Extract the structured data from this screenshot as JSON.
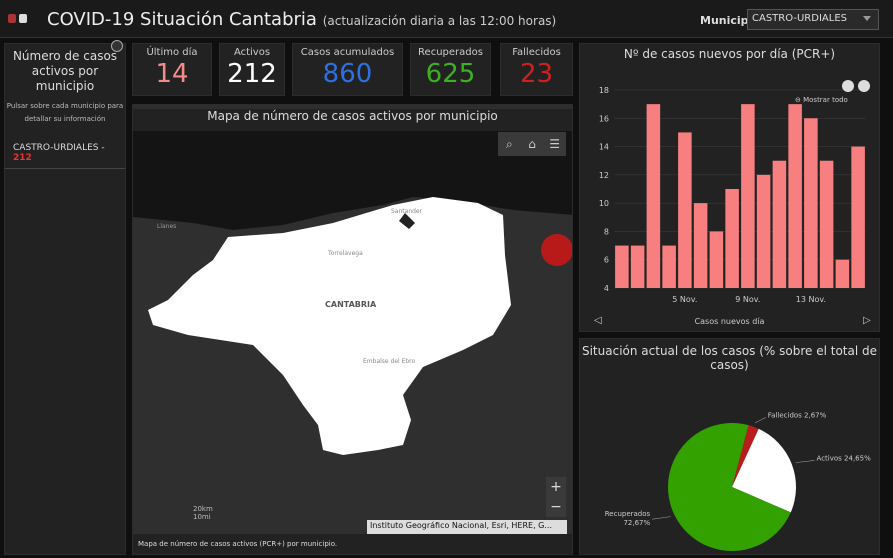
{
  "header": {
    "title": "COVID-19 Situación Cantabria",
    "subtitle": "(actualización diaria a las 12:00 horas)",
    "municipio_label": "Municipio",
    "municipio_value": "CASTRO-URDIALES"
  },
  "sidebar": {
    "heading": "Número de casos activos por municipio",
    "hint": "Pulsar sobre cada municipio para detallar su información",
    "item_name": "CASTRO-URDIALES -",
    "item_value": "212"
  },
  "kpis": [
    {
      "label": "Último día",
      "value": "14",
      "color": "#f48b8b"
    },
    {
      "label": "Activos",
      "value": "212",
      "color": "#ffffff"
    },
    {
      "label": "Casos acumulados",
      "value": "860",
      "color": "#2f6fe0"
    },
    {
      "label": "Recuperados",
      "value": "625",
      "color": "#3cb021"
    },
    {
      "label": "Fallecidos",
      "value": "23",
      "color": "#d01f1f"
    }
  ],
  "map": {
    "title": "Mapa de número de casos activos por municipio",
    "footer": "Mapa de número de casos activos (PCR+) por municipio.",
    "attribution": "Instituto Geográfico Nacional, Esri, HERE, G...",
    "labels": [
      "Llanes",
      "Santander",
      "Torrelavega",
      "CANTABRIA",
      "Embalse del Ebro"
    ],
    "scale_km": "20km",
    "scale_mi": "10mi"
  },
  "bar_panel": {
    "title": "Nº de casos nuevos por día (PCR+)",
    "mostrar": "Mostrar todo",
    "xlabel": "Casos nuevos día"
  },
  "pie_panel": {
    "title": "Situación actual de los casos (% sobre el total de casos)"
  },
  "chart_data": [
    {
      "type": "bar",
      "title": "Nº de casos nuevos por día (PCR+)",
      "xlabel": "Casos nuevos día",
      "values": [
        7,
        7,
        17,
        7,
        15,
        10,
        8,
        11,
        17,
        12,
        13,
        17,
        16,
        13,
        6,
        14
      ],
      "x_tick_labels": [
        "5 Nov.",
        "9 Nov.",
        "13 Nov."
      ],
      "x_tick_index": [
        4,
        8,
        12
      ],
      "ylim": [
        4,
        18
      ],
      "yticks": [
        4,
        6,
        8,
        10,
        12,
        14,
        16,
        18
      ],
      "color": "#f77f7f"
    },
    {
      "type": "pie",
      "title": "Situación actual de los casos (% sobre el total de casos)",
      "slices": [
        {
          "label": "Recuperados 72,67%",
          "value": 72.67,
          "color": "#33a200"
        },
        {
          "label": "Activos 24,65%",
          "value": 24.65,
          "color": "#ffffff"
        },
        {
          "label": "Fallecidos 2,67%",
          "value": 2.67,
          "color": "#b81c1c"
        }
      ]
    }
  ]
}
